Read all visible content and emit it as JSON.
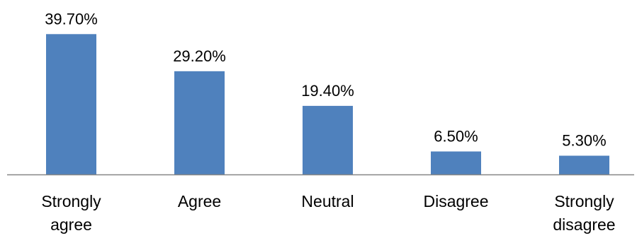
{
  "chart_data": {
    "type": "bar",
    "categories": [
      [
        "Strongly",
        "agree"
      ],
      [
        "Agree"
      ],
      [
        "Neutral"
      ],
      [
        "Disagree"
      ],
      [
        "Strongly",
        "disagree"
      ]
    ],
    "values": [
      39.7,
      29.2,
      19.4,
      6.5,
      5.3
    ],
    "value_labels": [
      "39.70%",
      "29.20%",
      "19.40%",
      "6.50%",
      "5.30%"
    ],
    "unit": "%",
    "ylim": [
      0,
      45
    ],
    "grid": false,
    "legend": "none",
    "bar_color": "#4f81bd",
    "axis_color": "#868686"
  }
}
